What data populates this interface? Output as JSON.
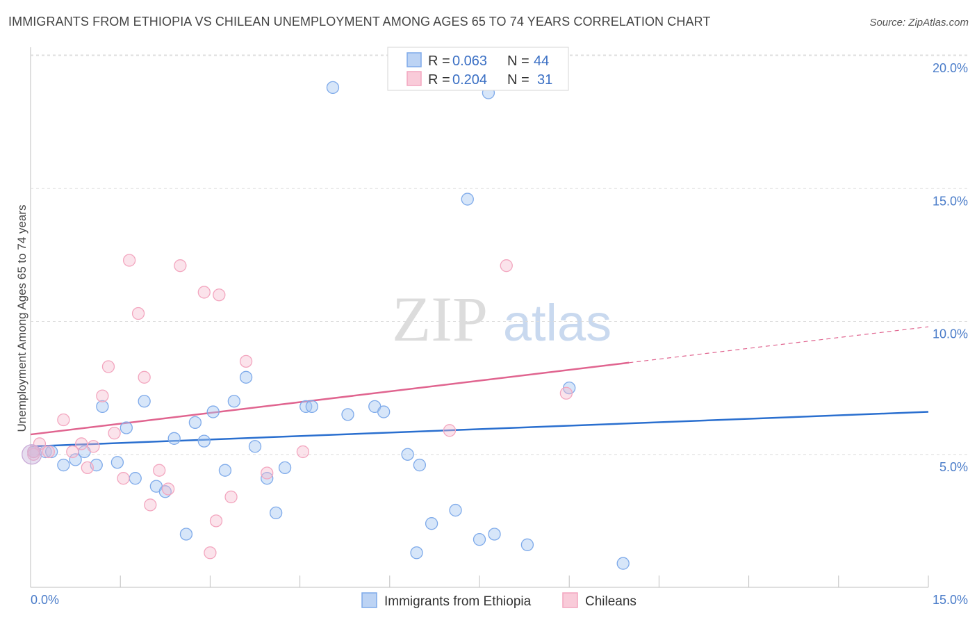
{
  "chart_data": {
    "type": "scatter",
    "title": "IMMIGRANTS FROM ETHIOPIA VS CHILEAN UNEMPLOYMENT AMONG AGES 65 TO 74 YEARS CORRELATION CHART",
    "source": "Source: ZipAtlas.com",
    "xlabel": "",
    "ylabel": "Unemployment Among Ages 65 to 74 years",
    "xlim": [
      0,
      15
    ],
    "ylim": [
      0,
      20
    ],
    "x_tick_labels": [
      "0.0%",
      "15.0%"
    ],
    "y_tick_labels": [
      "5.0%",
      "10.0%",
      "15.0%",
      "20.0%"
    ],
    "y_tick_values": [
      5,
      10,
      15,
      20
    ],
    "watermark": {
      "zip": "ZIP",
      "atlas": "atlas"
    },
    "legend": [
      {
        "r_label": "R =",
        "r_value": "0.063",
        "n_label": "N =",
        "n_value": "44"
      },
      {
        "r_label": "R =",
        "r_value": "0.204",
        "n_label": "N =",
        "n_value": "31"
      }
    ],
    "series": [
      {
        "name": "Immigrants from Ethiopia",
        "color": "#7eaaea",
        "line_color": "#2a6fcf",
        "trend": {
          "x0": 0,
          "y0": 5.3,
          "x1": 15,
          "y1": 6.6,
          "solid_until": 15
        },
        "points": [
          [
            0.05,
            5.1
          ],
          [
            0.25,
            5.1
          ],
          [
            0.35,
            5.1
          ],
          [
            0.55,
            4.6
          ],
          [
            0.75,
            4.8
          ],
          [
            0.9,
            5.1
          ],
          [
            1.1,
            4.6
          ],
          [
            1.2,
            6.8
          ],
          [
            1.45,
            4.7
          ],
          [
            1.6,
            6.0
          ],
          [
            1.75,
            4.1
          ],
          [
            1.9,
            7.0
          ],
          [
            2.1,
            3.8
          ],
          [
            2.25,
            3.6
          ],
          [
            2.4,
            5.6
          ],
          [
            2.6,
            2.0
          ],
          [
            2.75,
            6.2
          ],
          [
            2.9,
            5.5
          ],
          [
            3.05,
            6.6
          ],
          [
            3.25,
            4.4
          ],
          [
            3.4,
            7.0
          ],
          [
            3.6,
            7.9
          ],
          [
            3.75,
            5.3
          ],
          [
            3.95,
            4.1
          ],
          [
            4.1,
            2.8
          ],
          [
            4.25,
            4.5
          ],
          [
            4.6,
            6.8
          ],
          [
            4.7,
            6.8
          ],
          [
            5.05,
            18.8
          ],
          [
            5.3,
            6.5
          ],
          [
            5.75,
            6.8
          ],
          [
            5.9,
            6.6
          ],
          [
            6.3,
            5.0
          ],
          [
            6.45,
            1.3
          ],
          [
            6.5,
            4.6
          ],
          [
            6.7,
            2.4
          ],
          [
            7.1,
            2.9
          ],
          [
            7.3,
            14.6
          ],
          [
            7.5,
            1.8
          ],
          [
            7.65,
            18.6
          ],
          [
            7.75,
            2.0
          ],
          [
            8.3,
            1.6
          ],
          [
            9.0,
            7.5
          ],
          [
            9.9,
            0.9
          ]
        ]
      },
      {
        "name": "Chileans",
        "color": "#f3a6bf",
        "line_color": "#e0648f",
        "trend": {
          "x0": 0,
          "y0": 5.75,
          "x1": 15,
          "y1": 9.8,
          "solid_until": 10.0
        },
        "points": [
          [
            0.05,
            5.0
          ],
          [
            0.15,
            5.4
          ],
          [
            0.3,
            5.1
          ],
          [
            0.55,
            6.3
          ],
          [
            0.7,
            5.1
          ],
          [
            0.85,
            5.4
          ],
          [
            0.95,
            4.5
          ],
          [
            1.05,
            5.3
          ],
          [
            1.2,
            7.2
          ],
          [
            1.3,
            8.3
          ],
          [
            1.4,
            5.8
          ],
          [
            1.55,
            4.1
          ],
          [
            1.65,
            12.3
          ],
          [
            1.8,
            10.3
          ],
          [
            1.9,
            7.9
          ],
          [
            2.0,
            3.1
          ],
          [
            2.15,
            4.4
          ],
          [
            2.3,
            3.7
          ],
          [
            2.5,
            12.1
          ],
          [
            2.9,
            11.1
          ],
          [
            3.0,
            1.3
          ],
          [
            3.1,
            2.5
          ],
          [
            3.15,
            11.0
          ],
          [
            3.35,
            3.4
          ],
          [
            3.6,
            8.5
          ],
          [
            3.95,
            4.3
          ],
          [
            4.55,
            5.1
          ],
          [
            7.0,
            5.9
          ],
          [
            7.95,
            12.1
          ],
          [
            8.95,
            7.3
          ],
          [
            0.05,
            5.1
          ]
        ]
      }
    ]
  }
}
